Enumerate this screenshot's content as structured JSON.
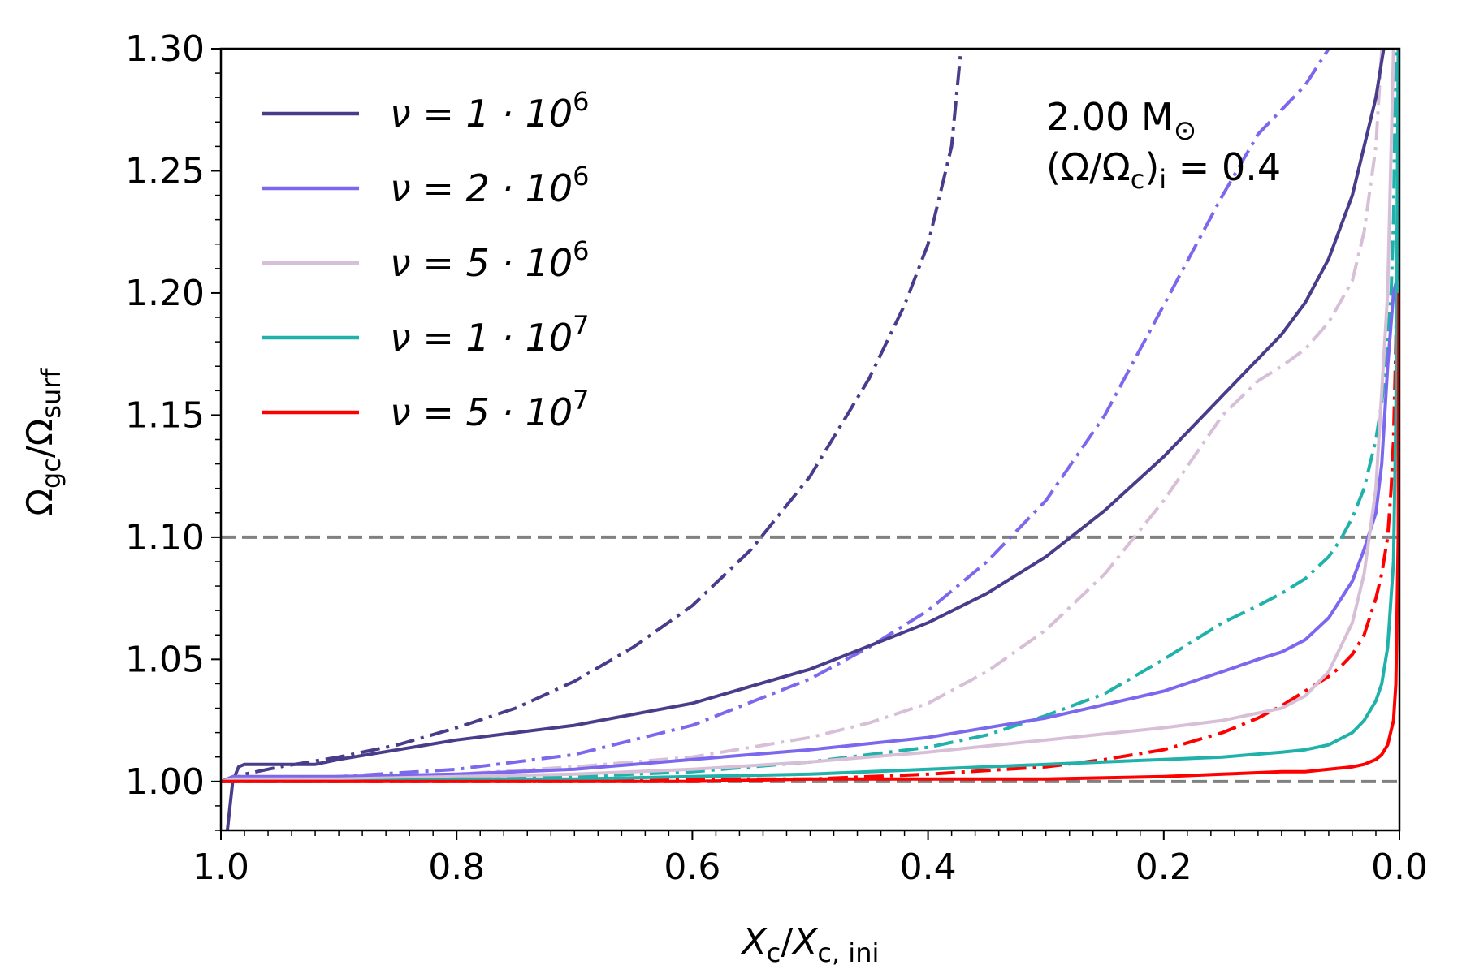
{
  "chart_data": {
    "type": "line",
    "xlabel": {
      "main": "X",
      "sub": "c",
      "sep": "/",
      "main2": "X",
      "sub2": "c, ini"
    },
    "ylabel": {
      "main": "Ω",
      "sub": "gc",
      "sep": "/",
      "main2": "Ω",
      "sub2": "surf"
    },
    "xlim": [
      1.0,
      0.0
    ],
    "ylim": [
      0.98,
      1.3
    ],
    "x_ticks": [
      1.0,
      0.8,
      0.6,
      0.4,
      0.2,
      0.0
    ],
    "x_tick_labels": [
      "1.0",
      "0.8",
      "0.6",
      "0.4",
      "0.2",
      "0.0"
    ],
    "y_ticks": [
      1.0,
      1.05,
      1.1,
      1.15,
      1.2,
      1.25,
      1.3
    ],
    "y_tick_labels": [
      "1.00",
      "1.05",
      "1.10",
      "1.15",
      "1.20",
      "1.25",
      "1.30"
    ],
    "reference_lines": [
      {
        "y": 1.0,
        "color": "#808080",
        "style": "dashed"
      },
      {
        "y": 1.1,
        "color": "#808080",
        "style": "dashed"
      }
    ],
    "annotation": {
      "line1": "2.00 M",
      "line1_symbol": "⊙",
      "line2_pre": "(Ω/Ω",
      "line2_sub1": "c",
      "line2_mid": ")",
      "line2_sub2": "i",
      "line2_post": " = 0.4"
    },
    "legend_position": "upper-left",
    "series": [
      {
        "name": "ν = 1·10^6",
        "label_pre": "ν = 1 · 10",
        "label_exp": "6",
        "color": "#483d8b",
        "solid": {
          "x": [
            1.0,
            0.999,
            0.995,
            0.99,
            0.985,
            0.98,
            0.97,
            0.95,
            0.92,
            0.9,
            0.85,
            0.8,
            0.7,
            0.6,
            0.5,
            0.4,
            0.35,
            0.3,
            0.25,
            0.2,
            0.15,
            0.1,
            0.08,
            0.06,
            0.04,
            0.03,
            0.02,
            0.015,
            0.01
          ],
          "y": [
            0.978,
            0.978,
            0.978,
            1.0,
            1.006,
            1.007,
            1.007,
            1.007,
            1.007,
            1.009,
            1.013,
            1.017,
            1.023,
            1.032,
            1.046,
            1.065,
            1.077,
            1.092,
            1.111,
            1.133,
            1.158,
            1.183,
            1.196,
            1.214,
            1.24,
            1.26,
            1.28,
            1.295,
            1.31
          ]
        },
        "dashdot": {
          "x": [
            1.0,
            0.99,
            0.98,
            0.95,
            0.9,
            0.85,
            0.8,
            0.75,
            0.7,
            0.65,
            0.6,
            0.55,
            0.5,
            0.45,
            0.42,
            0.4,
            0.38,
            0.37
          ],
          "y": [
            1.0,
            1.001,
            1.003,
            1.006,
            1.01,
            1.015,
            1.022,
            1.03,
            1.041,
            1.055,
            1.072,
            1.095,
            1.125,
            1.165,
            1.195,
            1.22,
            1.26,
            1.31
          ]
        }
      },
      {
        "name": "ν = 2·10^6",
        "label_pre": "ν = 2 · 10",
        "label_exp": "6",
        "color": "#7b68ee",
        "solid": {
          "x": [
            1.0,
            0.99,
            0.98,
            0.95,
            0.9,
            0.8,
            0.7,
            0.6,
            0.5,
            0.4,
            0.3,
            0.2,
            0.15,
            0.12,
            0.1,
            0.08,
            0.06,
            0.04,
            0.03,
            0.02,
            0.015,
            0.01,
            0.005,
            0.0
          ],
          "y": [
            1.0,
            1.002,
            1.002,
            1.002,
            1.002,
            1.003,
            1.005,
            1.009,
            1.013,
            1.018,
            1.026,
            1.037,
            1.045,
            1.05,
            1.053,
            1.058,
            1.067,
            1.082,
            1.095,
            1.11,
            1.13,
            1.17,
            1.2,
            1.21
          ]
        },
        "dashdot": {
          "x": [
            1.0,
            0.99,
            0.97,
            0.95,
            0.9,
            0.8,
            0.7,
            0.6,
            0.5,
            0.45,
            0.4,
            0.35,
            0.3,
            0.25,
            0.2,
            0.15,
            0.12,
            0.1,
            0.08,
            0.06,
            0.05
          ],
          "y": [
            1.0,
            1.0,
            1.001,
            1.001,
            1.002,
            1.005,
            1.011,
            1.023,
            1.042,
            1.055,
            1.07,
            1.09,
            1.115,
            1.15,
            1.195,
            1.24,
            1.265,
            1.275,
            1.285,
            1.3,
            1.31
          ]
        }
      },
      {
        "name": "ν = 5·10^6",
        "label_pre": "ν = 5 · 10",
        "label_exp": "6",
        "color": "#d8bfd8",
        "solid": {
          "x": [
            1.0,
            0.99,
            0.98,
            0.95,
            0.9,
            0.8,
            0.7,
            0.6,
            0.5,
            0.4,
            0.3,
            0.2,
            0.15,
            0.1,
            0.08,
            0.06,
            0.04,
            0.03,
            0.02,
            0.01,
            0.005
          ],
          "y": [
            1.0,
            1.001,
            1.001,
            1.001,
            1.001,
            1.002,
            1.003,
            1.005,
            1.008,
            1.012,
            1.017,
            1.022,
            1.025,
            1.03,
            1.035,
            1.045,
            1.065,
            1.085,
            1.12,
            1.2,
            1.3
          ]
        },
        "dashdot": {
          "x": [
            1.0,
            0.99,
            0.98,
            0.95,
            0.9,
            0.8,
            0.7,
            0.6,
            0.5,
            0.45,
            0.4,
            0.35,
            0.3,
            0.25,
            0.2,
            0.15,
            0.12,
            0.1,
            0.08,
            0.06,
            0.04,
            0.03,
            0.02,
            0.015
          ],
          "y": [
            1.0,
            1.0,
            1.001,
            1.001,
            1.002,
            1.003,
            1.006,
            1.01,
            1.018,
            1.024,
            1.032,
            1.045,
            1.062,
            1.085,
            1.115,
            1.15,
            1.164,
            1.17,
            1.177,
            1.188,
            1.205,
            1.225,
            1.26,
            1.3
          ]
        }
      },
      {
        "name": "ν = 1·10^7",
        "label_pre": "ν = 1 · 10",
        "label_exp": "7",
        "color": "#20b2aa",
        "solid": {
          "x": [
            1.0,
            0.99,
            0.98,
            0.95,
            0.9,
            0.8,
            0.7,
            0.6,
            0.5,
            0.4,
            0.3,
            0.2,
            0.15,
            0.1,
            0.08,
            0.06,
            0.04,
            0.03,
            0.02,
            0.015,
            0.01,
            0.005,
            0.003,
            0.001
          ],
          "y": [
            1.0,
            1.0,
            1.0,
            1.0,
            1.0,
            1.001,
            1.001,
            1.002,
            1.003,
            1.005,
            1.007,
            1.009,
            1.01,
            1.012,
            1.013,
            1.015,
            1.02,
            1.025,
            1.033,
            1.04,
            1.055,
            1.09,
            1.15,
            1.3
          ]
        },
        "dashdot": {
          "x": [
            1.0,
            0.99,
            0.98,
            0.95,
            0.9,
            0.8,
            0.7,
            0.6,
            0.5,
            0.4,
            0.35,
            0.3,
            0.25,
            0.2,
            0.15,
            0.12,
            0.1,
            0.08,
            0.06,
            0.05,
            0.04,
            0.03,
            0.02,
            0.015,
            0.01,
            0.007,
            0.005,
            0.003
          ],
          "y": [
            1.0,
            1.0,
            1.0,
            1.0,
            1.0,
            1.001,
            1.002,
            1.004,
            1.008,
            1.014,
            1.019,
            1.027,
            1.036,
            1.05,
            1.065,
            1.072,
            1.077,
            1.083,
            1.092,
            1.099,
            1.108,
            1.12,
            1.14,
            1.155,
            1.18,
            1.2,
            1.23,
            1.3
          ]
        }
      },
      {
        "name": "ν = 5·10^7",
        "label_pre": "ν = 5 · 10",
        "label_exp": "7",
        "color": "#ff0000",
        "solid": {
          "x": [
            1.0,
            0.99,
            0.98,
            0.95,
            0.9,
            0.8,
            0.7,
            0.6,
            0.5,
            0.4,
            0.3,
            0.2,
            0.15,
            0.1,
            0.08,
            0.06,
            0.04,
            0.03,
            0.02,
            0.015,
            0.01,
            0.005,
            0.003,
            0.001,
            0.0005
          ],
          "y": [
            1.0,
            1.0,
            1.0,
            1.0,
            1.0,
            1.0,
            1.0,
            1.0,
            1.001,
            1.001,
            1.001,
            1.002,
            1.003,
            1.004,
            1.004,
            1.005,
            1.006,
            1.007,
            1.009,
            1.011,
            1.015,
            1.025,
            1.04,
            1.1,
            1.2
          ]
        },
        "dashdot": {
          "x": [
            1.0,
            0.99,
            0.98,
            0.95,
            0.9,
            0.8,
            0.7,
            0.6,
            0.5,
            0.4,
            0.3,
            0.25,
            0.2,
            0.15,
            0.12,
            0.1,
            0.08,
            0.06,
            0.05,
            0.04,
            0.03,
            0.02,
            0.015,
            0.01,
            0.007,
            0.005,
            0.003,
            0.002,
            0.001
          ],
          "y": [
            1.0,
            1.0,
            1.0,
            1.0,
            1.0,
            1.0,
            1.0,
            1.001,
            1.001,
            1.003,
            1.006,
            1.009,
            1.013,
            1.02,
            1.026,
            1.031,
            1.037,
            1.043,
            1.047,
            1.052,
            1.06,
            1.075,
            1.085,
            1.1,
            1.12,
            1.14,
            1.18,
            1.22,
            1.26
          ]
        }
      }
    ]
  }
}
